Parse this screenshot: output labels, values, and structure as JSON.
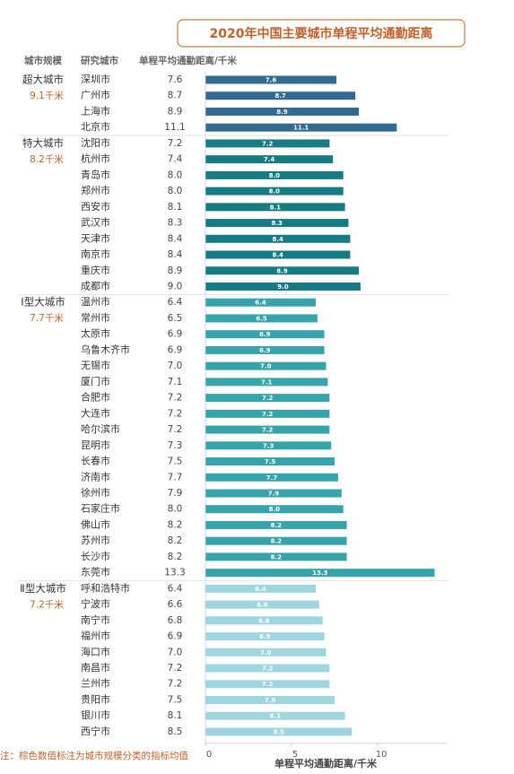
{
  "chart_data": {
    "type": "bar",
    "orientation": "horizontal",
    "title": "2020年中国主要城市单程平均通勤距离",
    "column_headers": [
      "城市规模",
      "研究城市",
      "单程平均通勤距离/千米"
    ],
    "xlabel": "单程平均通勤距离/千米",
    "note": "注：棕色数值标注为城市规模分类的指标均值",
    "xlim": [
      0,
      14
    ],
    "xticks": [
      0,
      5,
      10
    ],
    "series": [
      {
        "name": "超大城市",
        "mean_label": "9.1千米",
        "color": "#326b8f",
        "categories": [
          "深圳市",
          "广州市",
          "上海市",
          "北京市"
        ],
        "values": [
          7.6,
          8.7,
          8.9,
          11.1
        ],
        "value_labels": [
          "7.6",
          "8.7",
          "8.9",
          "11.1"
        ]
      },
      {
        "name": "特大城市",
        "mean_label": "8.2千米",
        "color": "#177b84",
        "categories": [
          "沈阳市",
          "杭州市",
          "青岛市",
          "郑州市",
          "西安市",
          "武汉市",
          "天津市",
          "南京市",
          "重庆市",
          "成都市"
        ],
        "values": [
          7.2,
          7.4,
          8.0,
          8.0,
          8.1,
          8.3,
          8.4,
          8.4,
          8.9,
          9.0
        ],
        "value_labels": [
          "7.2",
          "7.4",
          "8.0",
          "8.0",
          "8.1",
          "8.3",
          "8.4",
          "8.4",
          "8.9",
          "9.0"
        ]
      },
      {
        "name": "Ⅰ型大城市",
        "mean_label": "7.7千米",
        "color": "#37a3ab",
        "categories": [
          "温州市",
          "常州市",
          "太原市",
          "乌鲁木齐市",
          "无锡市",
          "厦门市",
          "合肥市",
          "大连市",
          "哈尔滨市",
          "昆明市",
          "长春市",
          "济南市",
          "徐州市",
          "石家庄市",
          "佛山市",
          "苏州市",
          "长沙市",
          "东莞市"
        ],
        "values": [
          6.4,
          6.5,
          6.9,
          6.9,
          7.0,
          7.1,
          7.2,
          7.2,
          7.2,
          7.3,
          7.5,
          7.7,
          7.9,
          8.0,
          8.2,
          8.2,
          8.2,
          13.3
        ],
        "value_labels": [
          "6.4",
          "6.5",
          "6.9",
          "6.9",
          "7.0",
          "7.1",
          "7.2",
          "7.2",
          "7.2",
          "7.3",
          "7.5",
          "7.7",
          "7.9",
          "8.0",
          "8.2",
          "8.2",
          "8.2",
          "13.3"
        ]
      },
      {
        "name": "Ⅱ型大城市",
        "mean_label": "7.2千米",
        "color": "#9dd6df",
        "categories": [
          "呼和浩特市",
          "宁波市",
          "南宁市",
          "福州市",
          "海口市",
          "南昌市",
          "兰州市",
          "贵阳市",
          "银川市",
          "西宁市"
        ],
        "values": [
          6.4,
          6.6,
          6.8,
          6.9,
          7.0,
          7.2,
          7.2,
          7.5,
          8.1,
          8.5
        ],
        "value_labels": [
          "6.4",
          "6.6",
          "6.8",
          "6.9",
          "7.0",
          "7.2",
          "7.2",
          "7.5",
          "8.1",
          "8.5"
        ]
      }
    ]
  }
}
